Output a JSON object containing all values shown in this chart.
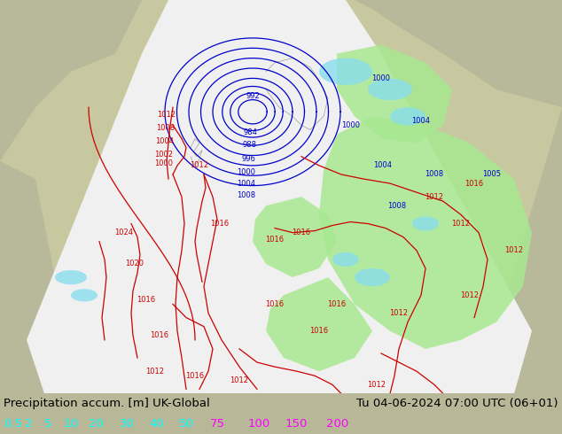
{
  "title_left": "Precipitation accum. [m] UK-Global",
  "title_right": "Tu 04-06-2024 07:00 UTC (06+01)",
  "legend_values": [
    "0.5",
    "2",
    "5",
    "10",
    "20",
    "30",
    "40",
    "50",
    "75",
    "100",
    "150",
    "200"
  ],
  "legend_colors_cyan": [
    "#00ffff",
    "#00ffff",
    "#00ffff",
    "#00ffff",
    "#00ffff",
    "#00ffff",
    "#00ffff",
    "#00ffff"
  ],
  "legend_colors_magenta": [
    "#ff00ff",
    "#ff00ff",
    "#ff00ff",
    "#ff00ff"
  ],
  "bg_color": "#b8b899",
  "land_color": "#c8c8a0",
  "sea_color": "#b0c0d0",
  "white_cone_color": "#f0f0f0",
  "green_precip_color": "#a8e890",
  "cyan_precip_color": "#88ddee",
  "bottom_bar_color": "#d8d8d8",
  "text_color": "#000000",
  "title_font_size": 9.5,
  "legend_font_size": 9.5,
  "fig_width": 6.34,
  "fig_height": 4.9,
  "dpi": 100,
  "blue_isobar_color": "#0000cc",
  "red_isobar_color": "#cc0000",
  "isobar_linewidth": 0.9,
  "label_fontsize": 6.0
}
